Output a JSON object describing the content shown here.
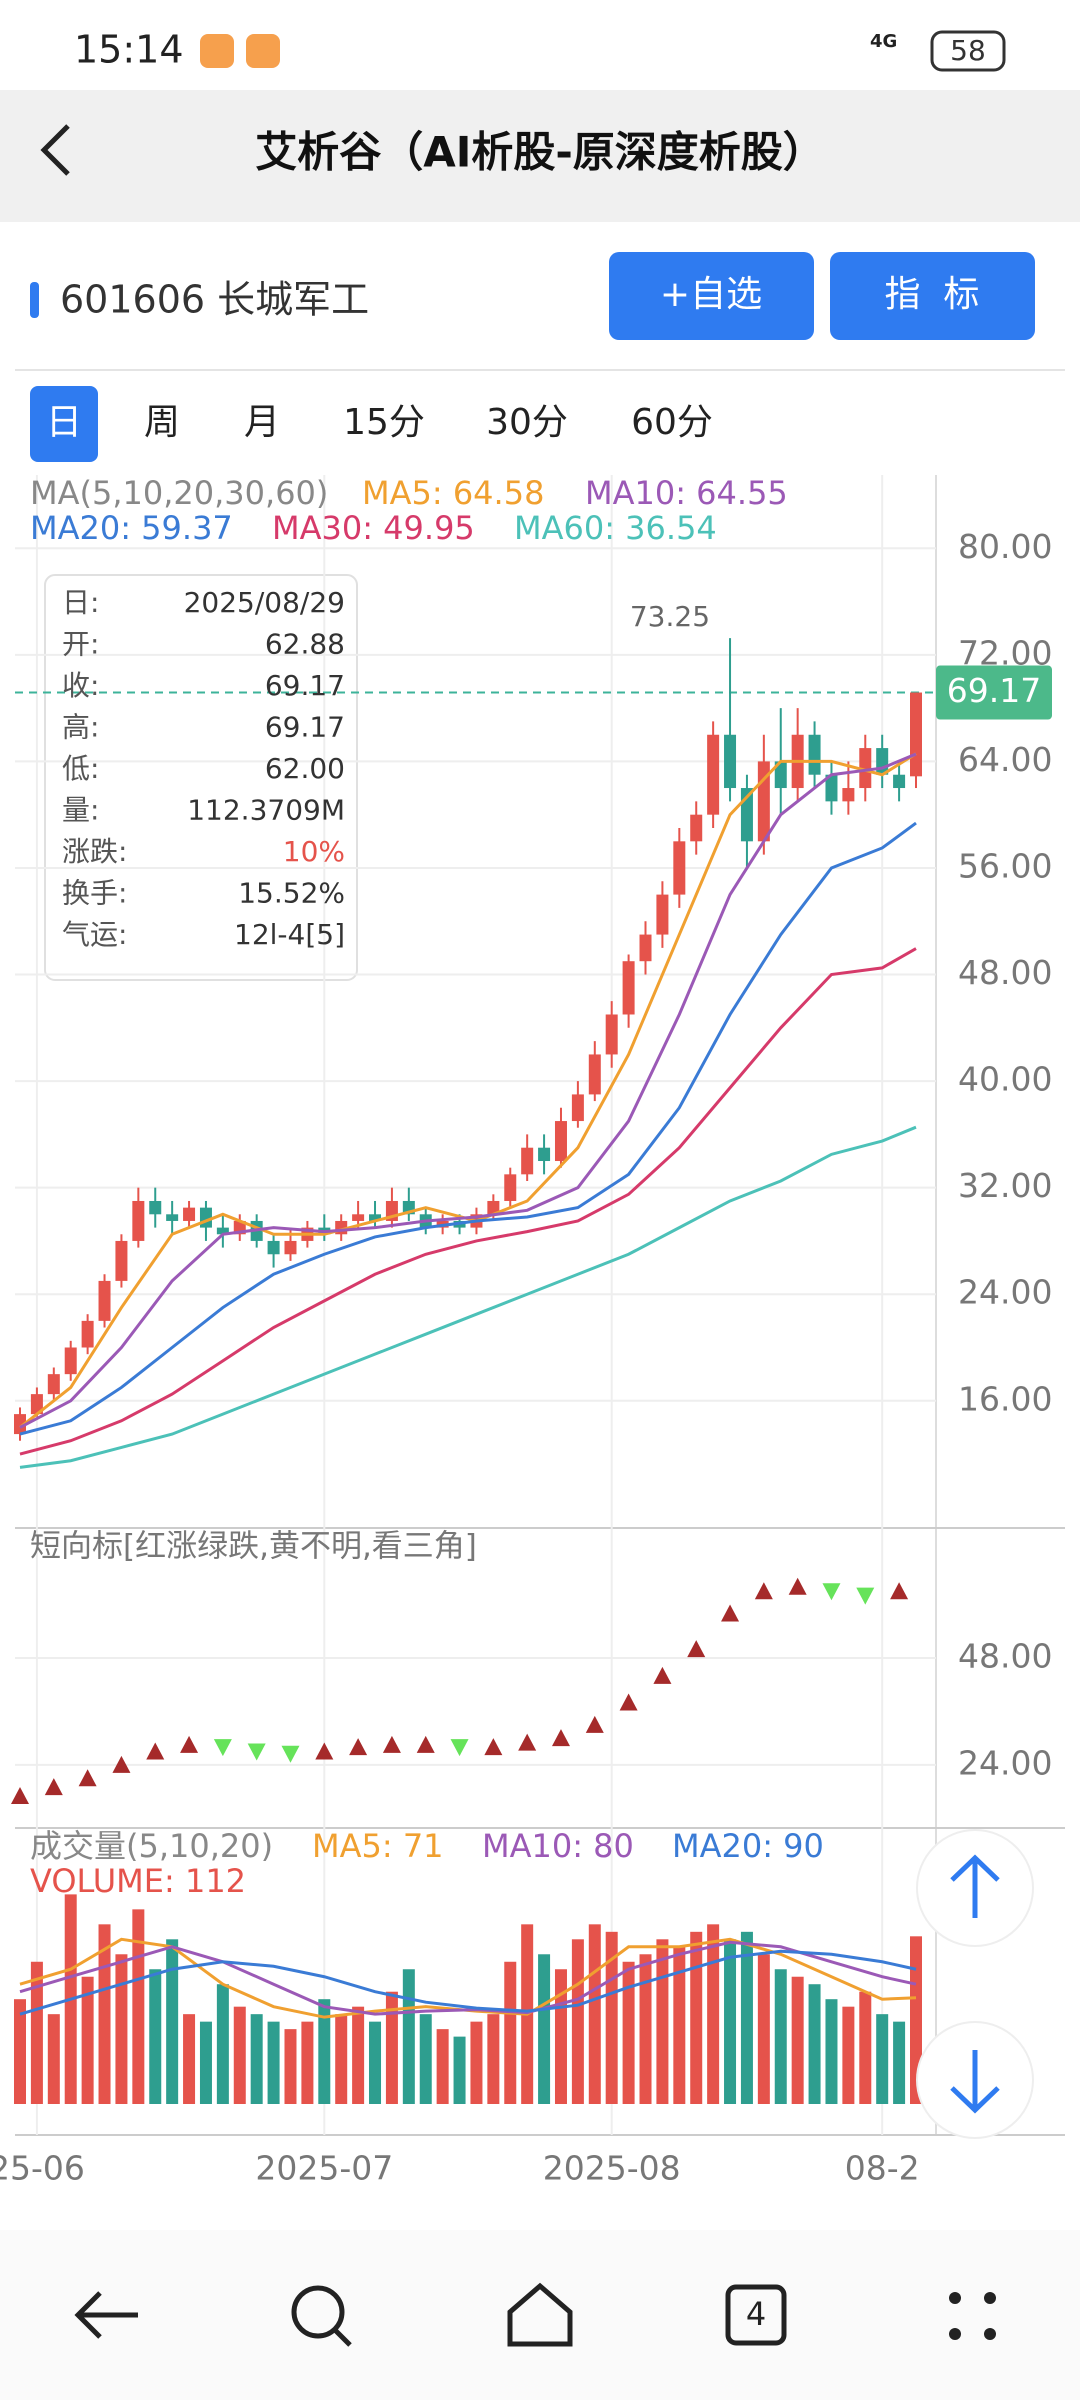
{
  "status_bar": {
    "time": "15:14",
    "network": "4G",
    "battery": "58"
  },
  "header": {
    "title": "艾析谷（AI析股-原深度析股）"
  },
  "stock": {
    "code_name": "601606 长城军工",
    "buttons": [
      "+自选",
      "指  标"
    ]
  },
  "tabs": [
    "日",
    "周",
    "月",
    "15分",
    "30分",
    "60分"
  ],
  "ma_legend": [
    {
      "text": "MA(5,10,20,30,60)",
      "color": "#888888"
    },
    {
      "text": "MA5: 64.58",
      "color": "#f0a030"
    },
    {
      "text": "MA10: 64.55",
      "color": "#9b59b6"
    },
    {
      "text": "MA20: 59.37",
      "color": "#3a7bd5"
    },
    {
      "text": "MA30: 49.95",
      "color": "#d63a6a"
    },
    {
      "text": "MA60: 36.54",
      "color": "#4cc1b8"
    }
  ],
  "info_box": {
    "rows": [
      [
        "日:",
        "2025/08/29"
      ],
      [
        "开:",
        "62.88"
      ],
      [
        "收:",
        "69.17"
      ],
      [
        "高:",
        "69.17"
      ],
      [
        "低:",
        "62.00"
      ],
      [
        "量:",
        "112.3709M"
      ],
      [
        "涨跌:",
        "10%"
      ],
      [
        "换手:",
        "15.52%"
      ],
      [
        "气运:",
        "12l-4[5]"
      ]
    ]
  },
  "chart": {
    "type": "candlestick",
    "categories": [
      null,
      "25-06",
      null,
      null,
      null,
      null,
      null,
      null,
      null,
      null,
      null,
      null,
      null,
      null,
      null,
      null,
      null,
      null,
      "2025-07",
      null,
      null,
      null,
      null,
      null,
      null,
      null,
      null,
      null,
      null,
      null,
      null,
      null,
      null,
      null,
      null,
      "2025-08",
      null,
      null,
      null,
      null,
      null,
      null,
      null,
      null,
      null,
      null,
      null,
      null,
      null,
      null,
      null,
      "08-2",
      null,
      null
    ],
    "candles": {
      "open": [
        13.5,
        15,
        16.5,
        18,
        20,
        22,
        25,
        28,
        31,
        30,
        29.5,
        30.5,
        29,
        28.5,
        29.5,
        28,
        27,
        28,
        29,
        28.5,
        29.5,
        30,
        29.5,
        31,
        30,
        29,
        29.5,
        29,
        30,
        31,
        33,
        35,
        34,
        37,
        39,
        42,
        45,
        49,
        51,
        54,
        58,
        60,
        66,
        62,
        58,
        64,
        62,
        66,
        63,
        61,
        62,
        65,
        63,
        62.88
      ],
      "close": [
        15,
        16.5,
        18,
        20,
        22,
        25,
        28,
        31,
        30,
        29.5,
        30.5,
        29,
        28.5,
        29.5,
        28,
        27,
        28,
        29,
        28.5,
        29.5,
        30,
        29.5,
        31,
        30,
        29,
        29.5,
        29,
        30,
        31,
        33,
        35,
        34,
        37,
        39,
        42,
        45,
        49,
        51,
        54,
        58,
        60,
        66,
        62,
        58,
        64,
        62,
        66,
        63,
        61,
        62,
        65,
        63,
        62,
        69.17
      ],
      "high": [
        15.5,
        17,
        18.5,
        20.5,
        22.5,
        25.5,
        28.5,
        32,
        32,
        31,
        31,
        31,
        30,
        30,
        30,
        28.5,
        29,
        29.5,
        30,
        30,
        31,
        31,
        32,
        32,
        30.5,
        30,
        30,
        30.5,
        31.5,
        33.5,
        36,
        36,
        38,
        40,
        43,
        46,
        49.5,
        52,
        55,
        59,
        61,
        67,
        73.25,
        63,
        66,
        68,
        68,
        67,
        64,
        64,
        66,
        66,
        64,
        69.17
      ],
      "low": [
        13,
        14.8,
        16,
        17.5,
        19.5,
        21.5,
        24.5,
        27.5,
        29,
        28.5,
        29,
        28,
        27.5,
        28,
        27.5,
        26,
        26.5,
        27.5,
        28,
        28,
        29,
        29,
        29,
        29.5,
        28.5,
        28.5,
        28.5,
        28.5,
        29.5,
        30.5,
        32.5,
        33,
        33.5,
        36.5,
        38.5,
        41,
        44,
        48,
        50,
        53,
        57,
        59,
        61,
        56,
        57,
        60,
        61,
        62,
        60,
        60,
        61,
        62,
        61,
        62.0
      ]
    },
    "up_color": "#e5534b",
    "down_color": "#2e9e8f",
    "ylim": [
      6.45,
      85.5
    ],
    "yticks": [
      {
        "value": 80,
        "label": "80.00"
      },
      {
        "value": 72,
        "label": "72.00"
      },
      {
        "value": 64,
        "label": "64.00"
      },
      {
        "value": 56,
        "label": "56.00"
      },
      {
        "value": 48,
        "label": "48.00"
      },
      {
        "value": 40,
        "label": "40.00"
      },
      {
        "value": 32,
        "label": "32.00"
      },
      {
        "value": 24,
        "label": "24.00"
      },
      {
        "value": 16,
        "label": "16.00"
      }
    ],
    "last_price": {
      "value": 69.17,
      "label": "69.17"
    },
    "peak": {
      "index": 42,
      "label": "73.25"
    },
    "ma_lines": {
      "x": [
        0,
        3,
        6,
        9,
        12,
        15,
        18,
        21,
        24,
        27,
        30,
        33,
        36,
        39,
        42,
        45,
        48,
        51,
        53
      ],
      "series": [
        {
          "name": "MA5",
          "color": "#f0a030",
          "values": [
            14,
            17,
            23,
            28.5,
            30,
            28.5,
            28.5,
            29.5,
            30.5,
            29.5,
            31,
            35,
            42,
            51,
            60,
            64,
            64,
            63,
            64.58
          ]
        },
        {
          "name": "MA10",
          "color": "#9b59b6",
          "values": [
            14,
            16,
            20,
            25,
            28.5,
            29,
            28.7,
            29,
            29.5,
            29.8,
            30.3,
            32,
            37,
            45,
            54,
            60,
            63,
            63.5,
            64.55
          ]
        },
        {
          "name": "MA20",
          "color": "#3a7bd5",
          "values": [
            13.5,
            14.5,
            17,
            20,
            23,
            25.5,
            27,
            28.3,
            29,
            29.5,
            29.8,
            30.5,
            33,
            38,
            45,
            51,
            56,
            57.5,
            59.37
          ]
        },
        {
          "name": "MA30",
          "color": "#d63a6a",
          "values": [
            12,
            13,
            14.5,
            16.5,
            19,
            21.5,
            23.5,
            25.5,
            27,
            28,
            28.7,
            29.5,
            31.5,
            35,
            39.5,
            44,
            48,
            48.5,
            49.95
          ]
        },
        {
          "name": "MA60",
          "color": "#4cc1b8",
          "values": [
            11,
            11.5,
            12.5,
            13.5,
            15,
            16.5,
            18,
            19.5,
            21,
            22.5,
            24,
            25.5,
            27,
            29,
            31,
            32.5,
            34.5,
            35.5,
            36.54
          ]
        }
      ]
    },
    "indicator": {
      "title": "短向标[红涨绿跌,黄不明,看三角]",
      "x": [
        0,
        2,
        4,
        6,
        8,
        10,
        12,
        14,
        16,
        18,
        20,
        22,
        24,
        26,
        28,
        30,
        32,
        34,
        36,
        38,
        40,
        42,
        44,
        46,
        48,
        50,
        52
      ],
      "values": [
        17,
        19,
        21,
        24,
        27,
        28.5,
        28,
        27,
        26.5,
        27,
        28,
        28.5,
        28.5,
        28,
        28,
        29,
        30,
        33,
        38,
        44,
        50,
        58,
        63,
        64,
        63,
        62,
        63
      ],
      "ylim": [
        10.5,
        77.2
      ],
      "yticks": [
        {
          "value": 48,
          "label": "48.00"
        },
        {
          "value": 24,
          "label": "24.00"
        }
      ]
    },
    "volume": {
      "legend": [
        {
          "text": "成交量(5,10,20)",
          "color": "#888888"
        },
        {
          "text": "MA5: 71",
          "color": "#f0a030"
        },
        {
          "text": "MA10: 80",
          "color": "#9b59b6"
        },
        {
          "text": "MA20: 90",
          "color": "#3a7bd5"
        }
      ],
      "label": "VOLUME: 112",
      "values": [
        70,
        95,
        60,
        140,
        85,
        120,
        100,
        130,
        90,
        110,
        60,
        55,
        80,
        65,
        60,
        55,
        50,
        55,
        70,
        60,
        65,
        55,
        75,
        90,
        60,
        50,
        45,
        55,
        60,
        95,
        120,
        100,
        90,
        110,
        120,
        115,
        95,
        100,
        110,
        105,
        115,
        120,
        110,
        115,
        100,
        90,
        85,
        80,
        70,
        65,
        75,
        60,
        55,
        112
      ],
      "ylim": [
        0,
        183
      ],
      "ma_lines": {
        "x": [
          0,
          3,
          6,
          9,
          12,
          15,
          18,
          21,
          24,
          27,
          30,
          33,
          36,
          39,
          42,
          45,
          48,
          51,
          53
        ],
        "series": [
          {
            "name": "MA5",
            "color": "#f0a030",
            "values": [
              80,
              90,
              110,
              105,
              80,
              65,
              58,
              62,
              65,
              62,
              60,
              80,
              105,
              105,
              110,
              100,
              85,
              70,
              71
            ]
          },
          {
            "name": "MA10",
            "color": "#9b59b6",
            "values": [
              75,
              85,
              95,
              105,
              95,
              80,
              65,
              60,
              62,
              63,
              61,
              70,
              90,
              100,
              108,
              105,
              95,
              85,
              80
            ]
          },
          {
            "name": "MA20",
            "color": "#3a7bd5",
            "values": [
              60,
              70,
              80,
              90,
              95,
              92,
              85,
              75,
              68,
              64,
              62,
              66,
              78,
              88,
              98,
              102,
              100,
              95,
              90
            ]
          }
        ]
      }
    }
  },
  "nav": {
    "tab_count": "4"
  }
}
